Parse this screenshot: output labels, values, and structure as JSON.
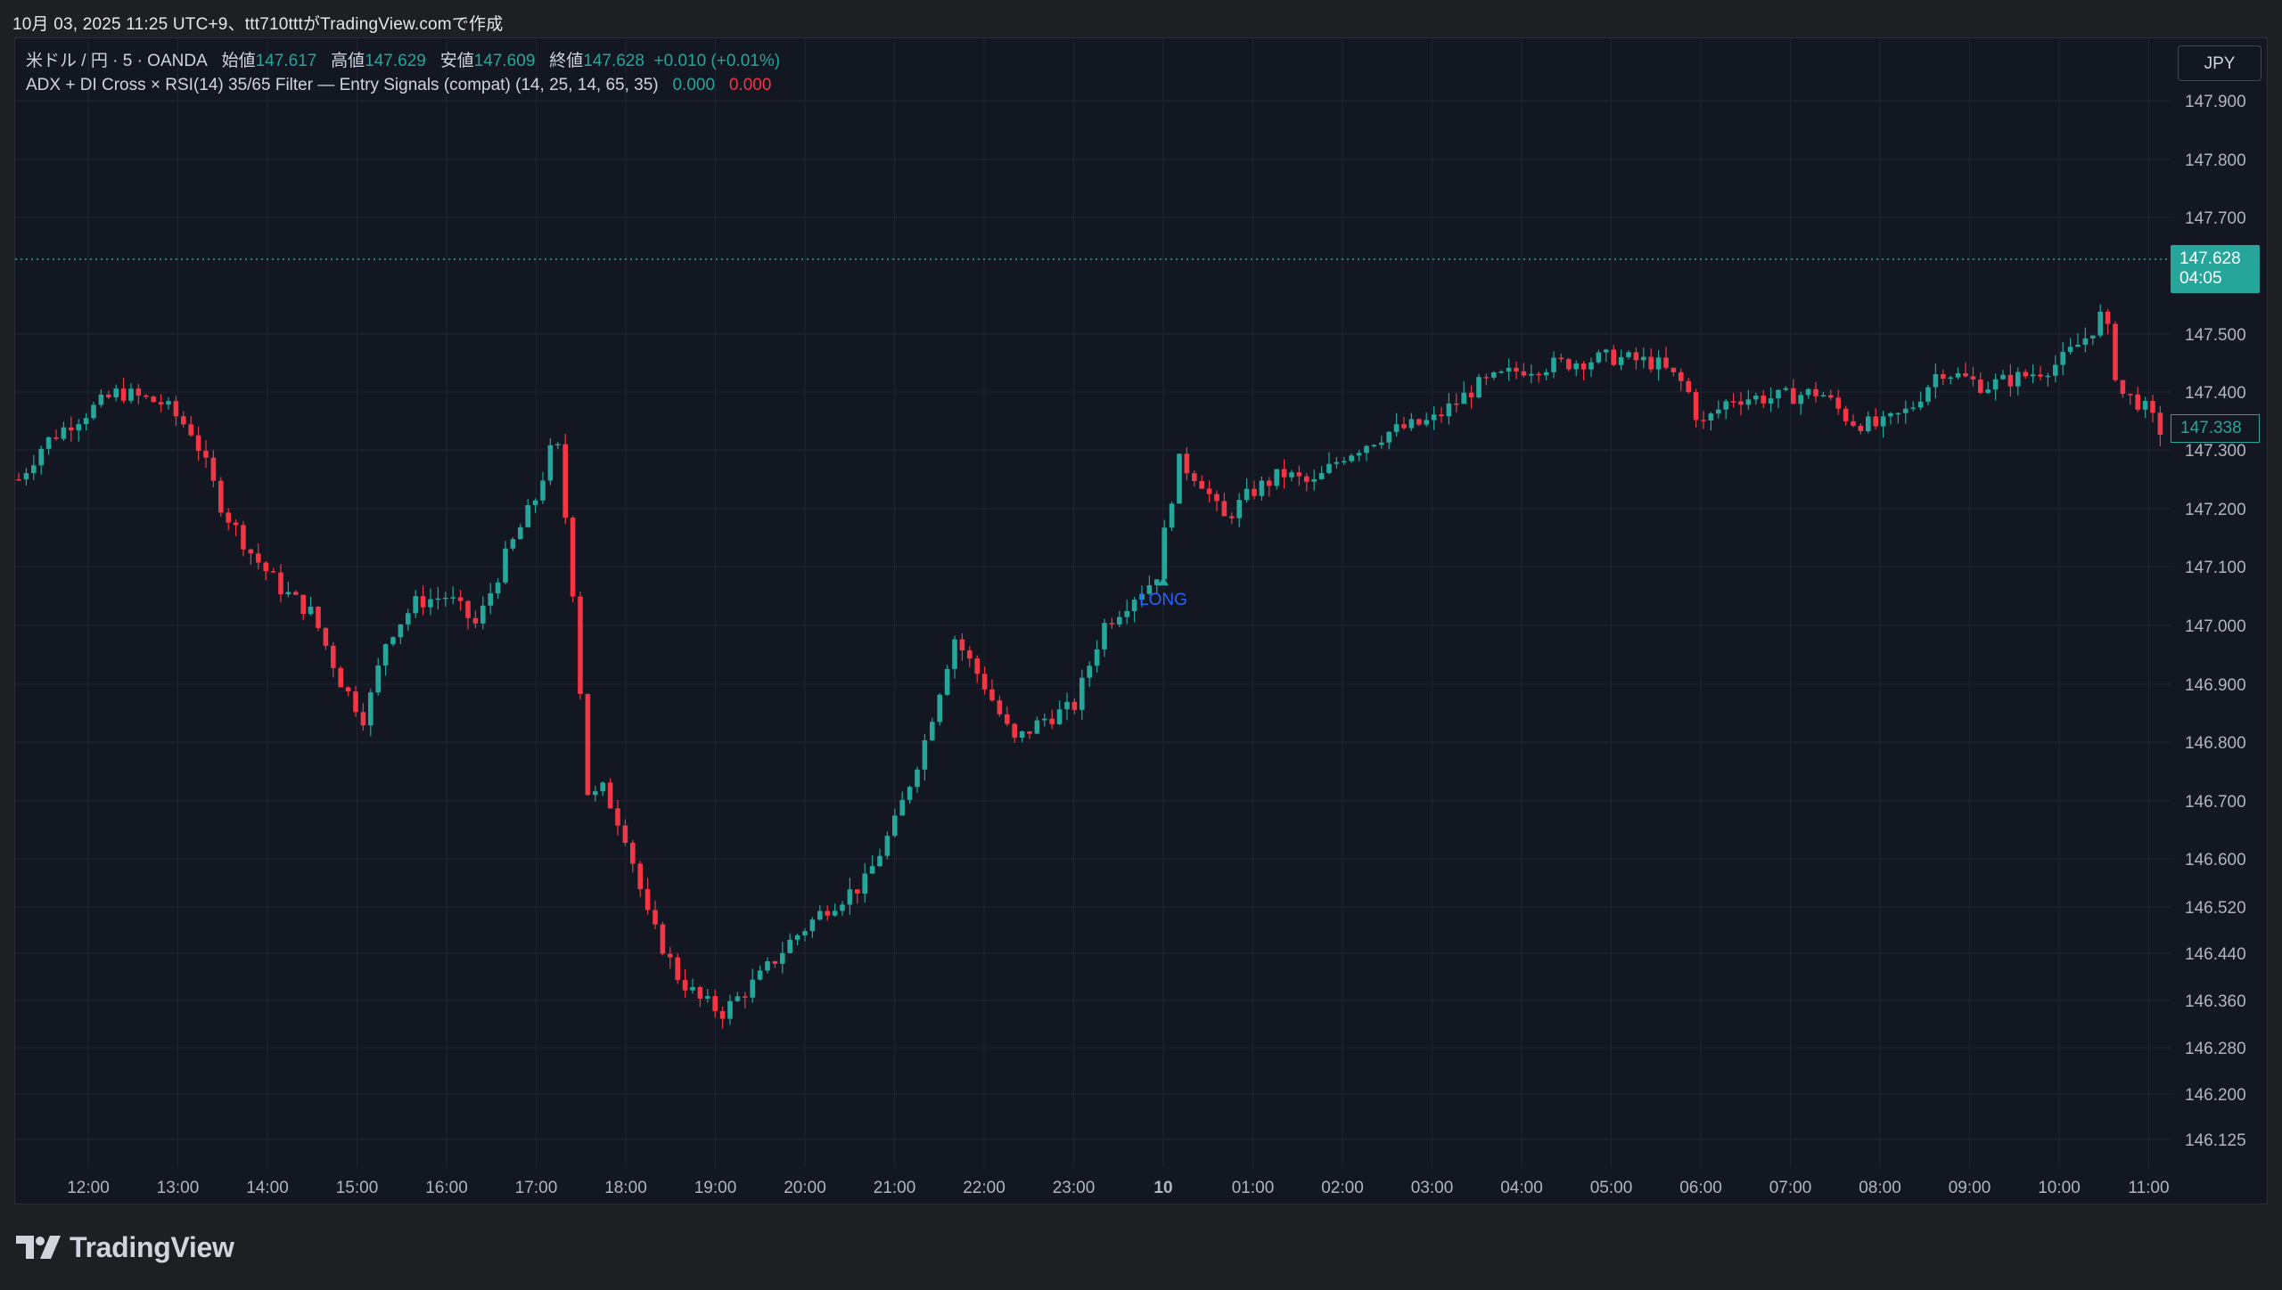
{
  "caption": "10月 03, 2025 11:25 UTC+9、ttt710tttがTradingView.comで作成",
  "legend": {
    "symbol": "米ドル / 円 · 5 · OANDA",
    "open_label": "始値",
    "open": "147.617",
    "high_label": "高値",
    "high": "147.629",
    "low_label": "安値",
    "low": "147.609",
    "close_label": "終値",
    "close": "147.628",
    "change": "+0.010 (+0.01%)",
    "indicator": "ADX + DI Cross × RSI(14) 35/65 Filter — Entry Signals (compat) (14, 25, 14, 65, 35)",
    "ind_val1": "0.000",
    "ind_val2": "0.000"
  },
  "currency_button": "JPY",
  "last_price_tag": {
    "price": "147.628",
    "countdown": "04:05"
  },
  "second_price_tag": "147.338",
  "logo_text": "TradingView",
  "colors": {
    "up": "#26a69a",
    "down": "#f23645",
    "background": "#131722",
    "grid": "#1f2433",
    "signal": "#2962ff"
  },
  "chart_data": {
    "type": "candlestick",
    "title": "",
    "x_tick_labels": [
      "12:00",
      "13:00",
      "14:00",
      "15:00",
      "16:00",
      "17:00",
      "18:00",
      "19:00",
      "20:00",
      "21:00",
      "22:00",
      "23:00",
      "10",
      "01:00",
      "02:00",
      "03:00",
      "04:00",
      "05:00",
      "06:00",
      "07:00",
      "08:00",
      "09:00",
      "10:00",
      "11:00"
    ],
    "y_tick_labels": [
      "147.900",
      "147.800",
      "147.700",
      "147.500",
      "147.400",
      "147.300",
      "147.200",
      "147.100",
      "147.000",
      "146.900",
      "146.800",
      "146.700",
      "146.600",
      "146.520",
      "146.440",
      "146.360",
      "146.280",
      "146.200",
      "146.125"
    ],
    "y_axis_range": [
      146.1,
      147.96
    ],
    "grid": true,
    "last_price": 147.628,
    "ma_price": 147.338,
    "signal": {
      "label": "LONG",
      "time": "00:00",
      "price": 147.08
    },
    "close_path": [
      {
        "t": "11:10",
        "v": 147.25
      },
      {
        "t": "11:30",
        "v": 147.31
      },
      {
        "t": "11:50",
        "v": 147.35
      },
      {
        "t": "12:20",
        "v": 147.4
      },
      {
        "t": "12:50",
        "v": 147.38
      },
      {
        "t": "13:10",
        "v": 147.33
      },
      {
        "t": "13:30",
        "v": 147.2
      },
      {
        "t": "13:50",
        "v": 147.12
      },
      {
        "t": "14:10",
        "v": 147.06
      },
      {
        "t": "14:30",
        "v": 147.02
      },
      {
        "t": "14:50",
        "v": 146.9
      },
      {
        "t": "15:05",
        "v": 146.84
      },
      {
        "t": "15:20",
        "v": 146.98
      },
      {
        "t": "15:40",
        "v": 147.04
      },
      {
        "t": "16:00",
        "v": 147.05
      },
      {
        "t": "16:20",
        "v": 147.0
      },
      {
        "t": "16:40",
        "v": 147.12
      },
      {
        "t": "17:00",
        "v": 147.22
      },
      {
        "t": "17:10",
        "v": 147.3
      },
      {
        "t": "17:15",
        "v": 147.3
      },
      {
        "t": "17:25",
        "v": 147.05
      },
      {
        "t": "17:35",
        "v": 146.7
      },
      {
        "t": "17:45",
        "v": 146.72
      },
      {
        "t": "18:00",
        "v": 146.64
      },
      {
        "t": "18:15",
        "v": 146.5
      },
      {
        "t": "18:35",
        "v": 146.4
      },
      {
        "t": "18:50",
        "v": 146.36
      },
      {
        "t": "19:05",
        "v": 146.34
      },
      {
        "t": "19:30",
        "v": 146.4
      },
      {
        "t": "19:50",
        "v": 146.46
      },
      {
        "t": "20:15",
        "v": 146.52
      },
      {
        "t": "20:40",
        "v": 146.56
      },
      {
        "t": "21:00",
        "v": 146.66
      },
      {
        "t": "21:20",
        "v": 146.8
      },
      {
        "t": "21:40",
        "v": 146.98
      },
      {
        "t": "22:00",
        "v": 146.9
      },
      {
        "t": "22:20",
        "v": 146.8
      },
      {
        "t": "22:40",
        "v": 146.84
      },
      {
        "t": "23:00",
        "v": 146.86
      },
      {
        "t": "23:20",
        "v": 147.0
      },
      {
        "t": "23:40",
        "v": 147.05
      },
      {
        "t": "23:55",
        "v": 147.08
      },
      {
        "t": "00:10",
        "v": 147.28
      },
      {
        "t": "00:25",
        "v": 147.25
      },
      {
        "t": "00:40",
        "v": 147.18
      },
      {
        "t": "01:00",
        "v": 147.23
      },
      {
        "t": "01:20",
        "v": 147.26
      },
      {
        "t": "01:40",
        "v": 147.24
      },
      {
        "t": "02:00",
        "v": 147.29
      },
      {
        "t": "02:30",
        "v": 147.33
      },
      {
        "t": "03:00",
        "v": 147.35
      },
      {
        "t": "03:30",
        "v": 147.41
      },
      {
        "t": "04:00",
        "v": 147.44
      },
      {
        "t": "04:30",
        "v": 147.45
      },
      {
        "t": "05:00",
        "v": 147.46
      },
      {
        "t": "05:30",
        "v": 147.45
      },
      {
        "t": "05:50",
        "v": 147.41
      },
      {
        "t": "06:00",
        "v": 147.34
      },
      {
        "t": "06:20",
        "v": 147.39
      },
      {
        "t": "06:50",
        "v": 147.39
      },
      {
        "t": "07:20",
        "v": 147.4
      },
      {
        "t": "07:40",
        "v": 147.35
      },
      {
        "t": "08:00",
        "v": 147.34
      },
      {
        "t": "08:20",
        "v": 147.37
      },
      {
        "t": "08:40",
        "v": 147.44
      },
      {
        "t": "09:10",
        "v": 147.41
      },
      {
        "t": "09:40",
        "v": 147.43
      },
      {
        "t": "10:00",
        "v": 147.45
      },
      {
        "t": "10:20",
        "v": 147.5
      },
      {
        "t": "10:30",
        "v": 147.54
      },
      {
        "t": "10:40",
        "v": 147.4
      },
      {
        "t": "10:55",
        "v": 147.38
      },
      {
        "t": "11:10",
        "v": 147.33
      }
    ]
  }
}
